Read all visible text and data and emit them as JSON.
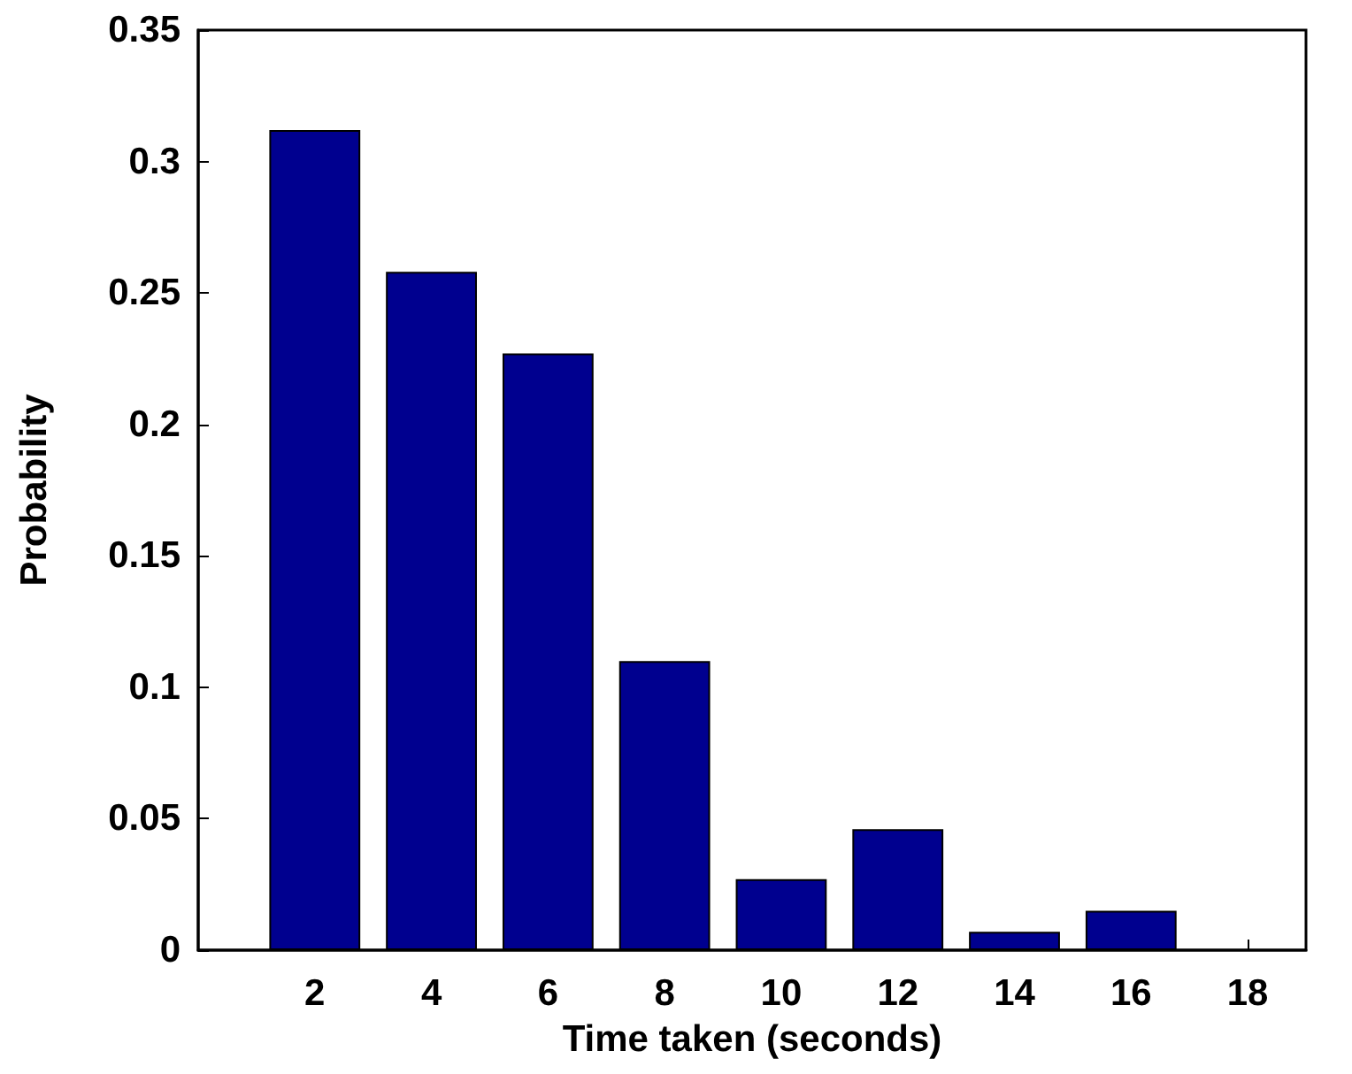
{
  "chart_data": {
    "type": "bar",
    "xlabel": "Time taken (seconds)",
    "ylabel": "Probability",
    "x": [
      2,
      4,
      6,
      8,
      10,
      12,
      14,
      16,
      18
    ],
    "values": [
      0.312,
      0.258,
      0.227,
      0.11,
      0.027,
      0.046,
      0.007,
      0.015,
      0
    ],
    "color": "#00008f",
    "xlim": [
      0,
      19
    ],
    "xticks": [
      2,
      4,
      6,
      8,
      10,
      12,
      14,
      16,
      18
    ],
    "ylim": [
      0,
      0.35
    ],
    "yticks": [
      0,
      0.05,
      0.1,
      0.15,
      0.2,
      0.25,
      0.3,
      0.35
    ],
    "grid": false
  }
}
